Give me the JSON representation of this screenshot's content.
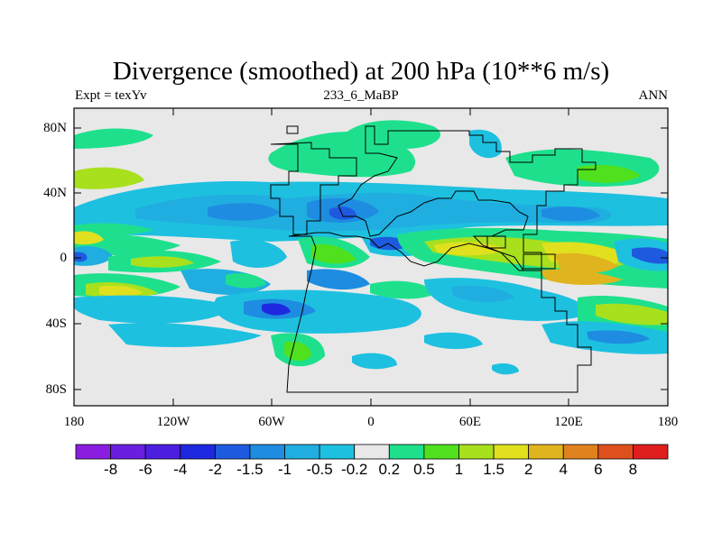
{
  "title": "Divergence (smoothed) at 200 hPa (10**6 m/s)",
  "expt_label": "Expt = texYv",
  "case_label": "233_6_MaBP",
  "season_label": "ANN",
  "y_ticks": [
    "80N",
    "40N",
    "0",
    "40S",
    "80S"
  ],
  "x_ticks": [
    "180",
    "120W",
    "60W",
    "0",
    "60E",
    "120E",
    "180"
  ],
  "colorbar": {
    "labels": [
      "-8",
      "-6",
      "-4",
      "-2",
      "-1.5",
      "-1",
      "-0.5",
      "-0.2",
      "0.2",
      "0.5",
      "1",
      "1.5",
      "2",
      "4",
      "6",
      "8"
    ],
    "colors": [
      "#8a1ee0",
      "#6a1ee0",
      "#4c1ee0",
      "#1e28e0",
      "#1e5ae0",
      "#1e8ce0",
      "#20aee0",
      "#1ec0e0",
      "#e8e8e8",
      "#1ee08c",
      "#50e01e",
      "#a8e01e",
      "#e0e01e",
      "#e0b41e",
      "#e0821e",
      "#e0501e",
      "#e01e1e"
    ]
  },
  "map_colors": {
    "neutral": "#e8e8e8",
    "neg_weak": "#1ec0e0",
    "neg_mid": "#20aee0",
    "neg_strong": "#1e8ce0",
    "neg_deep": "#1e5ae0",
    "neg_max": "#1e28e0",
    "pos_weak": "#1ee08c",
    "pos_mid": "#50e01e",
    "pos_light": "#a8e01e",
    "pos_yellow": "#e0e01e",
    "pos_orange": "#e0b41e"
  }
}
